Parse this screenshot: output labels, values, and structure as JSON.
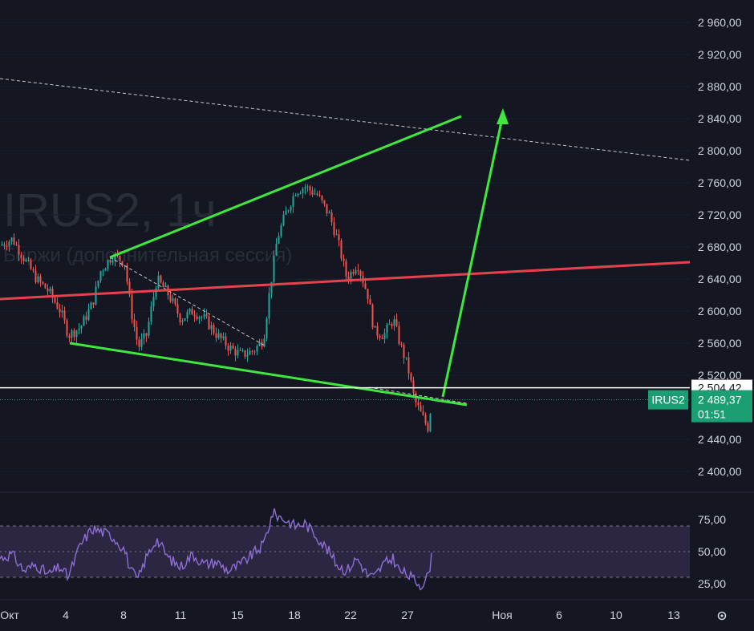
{
  "watermark": {
    "title": "IRUS2, 1ч",
    "subtitle": "Биржи (дополнительная сессия)"
  },
  "price_scale": {
    "ticks": [
      "2 960,00",
      "2 920,00",
      "2 880,00",
      "2 840,00",
      "2 800,00",
      "2 760,00",
      "2 720,00",
      "2 680,00",
      "2 640,00",
      "2 600,00",
      "2 560,00",
      "2 520,00",
      "2 440,00",
      "2 400,00"
    ],
    "marked_level_label": "2 504,42",
    "current_price_label": "2 489,37",
    "countdown": "01:51",
    "symbol_tag": "IRUS2"
  },
  "rsi_scale": {
    "ticks": [
      "75,00",
      "50,00",
      "25,00"
    ]
  },
  "time_axis": {
    "labels": [
      "Окт",
      "4",
      "8",
      "11",
      "15",
      "18",
      "22",
      "27",
      "Ноя",
      "6",
      "10",
      "13"
    ]
  },
  "settings_icon": "gear-icon",
  "colors": {
    "background": "#141722",
    "up_candle": "#26a69a",
    "down_candle": "#ef5350",
    "trendline": "#3ee83e",
    "resistance_line": "#e8414e",
    "rsi_line": "#8e6fd6",
    "rsi_band": "#2c2642",
    "current_price_tag": "#1b9e72"
  },
  "chart_data": [
    {
      "type": "candlestick",
      "symbol": "IRUS2",
      "timeframe": "1ч",
      "x": [
        "Окт",
        "4",
        "8",
        "11",
        "15",
        "18",
        "22",
        "27",
        "Ноя",
        "6",
        "10",
        "13"
      ],
      "ylim": [
        2385,
        2980
      ],
      "marked_level": 2504.42,
      "last_price": 2489.37,
      "close_path": [
        {
          "t": 0,
          "v": 2682
        },
        {
          "t": 15,
          "v": 2690
        },
        {
          "t": 30,
          "v": 2665
        },
        {
          "t": 45,
          "v": 2640
        },
        {
          "t": 60,
          "v": 2625
        },
        {
          "t": 75,
          "v": 2600
        },
        {
          "t": 85,
          "v": 2570
        },
        {
          "t": 100,
          "v": 2580
        },
        {
          "t": 115,
          "v": 2610
        },
        {
          "t": 125,
          "v": 2650
        },
        {
          "t": 140,
          "v": 2670
        },
        {
          "t": 155,
          "v": 2660
        },
        {
          "t": 163,
          "v": 2600
        },
        {
          "t": 172,
          "v": 2555
        },
        {
          "t": 182,
          "v": 2570
        },
        {
          "t": 195,
          "v": 2640
        },
        {
          "t": 210,
          "v": 2620
        },
        {
          "t": 225,
          "v": 2590
        },
        {
          "t": 240,
          "v": 2600
        },
        {
          "t": 255,
          "v": 2590
        },
        {
          "t": 270,
          "v": 2570
        },
        {
          "t": 285,
          "v": 2555
        },
        {
          "t": 300,
          "v": 2545
        },
        {
          "t": 315,
          "v": 2550
        },
        {
          "t": 328,
          "v": 2565
        },
        {
          "t": 335,
          "v": 2620
        },
        {
          "t": 345,
          "v": 2690
        },
        {
          "t": 355,
          "v": 2720
        },
        {
          "t": 368,
          "v": 2750
        },
        {
          "t": 380,
          "v": 2755
        },
        {
          "t": 395,
          "v": 2745
        },
        {
          "t": 410,
          "v": 2720
        },
        {
          "t": 420,
          "v": 2690
        },
        {
          "t": 432,
          "v": 2640
        },
        {
          "t": 445,
          "v": 2660
        },
        {
          "t": 458,
          "v": 2620
        },
        {
          "t": 466,
          "v": 2575
        },
        {
          "t": 478,
          "v": 2570
        },
        {
          "t": 490,
          "v": 2590
        },
        {
          "t": 498,
          "v": 2560
        },
        {
          "t": 508,
          "v": 2530
        },
        {
          "t": 516,
          "v": 2490
        },
        {
          "t": 525,
          "v": 2470
        },
        {
          "t": 533,
          "v": 2455
        },
        {
          "t": 538,
          "v": 2489
        }
      ],
      "drawings": {
        "upper_trendline": [
          [
            137,
            2667
          ],
          [
            575,
            2843
          ]
        ],
        "lower_trendline": [
          [
            87,
            2560
          ],
          [
            582,
            2483
          ]
        ],
        "resistance_line": [
          [
            0,
            2615
          ],
          [
            860,
            2661
          ]
        ],
        "projection_arrow": [
          [
            552,
            2493
          ],
          [
            627,
            2845
          ]
        ],
        "dashed_upper": [
          [
            0,
            2890
          ],
          [
            860,
            2788
          ]
        ],
        "dashed_inner": [
          [
            137,
            2667
          ],
          [
            330,
            2557
          ]
        ],
        "dashed_lower_extension": [
          [
            460,
            2505
          ],
          [
            582,
            2485
          ]
        ]
      }
    },
    {
      "type": "line",
      "name": "RSI",
      "ylim": [
        18,
        85
      ],
      "band": [
        30,
        70
      ],
      "midline": 50,
      "y_path": [
        {
          "t": 0,
          "v": 45
        },
        {
          "t": 15,
          "v": 48
        },
        {
          "t": 30,
          "v": 35
        },
        {
          "t": 45,
          "v": 40
        },
        {
          "t": 60,
          "v": 32
        },
        {
          "t": 75,
          "v": 38
        },
        {
          "t": 85,
          "v": 30
        },
        {
          "t": 100,
          "v": 55
        },
        {
          "t": 115,
          "v": 68
        },
        {
          "t": 125,
          "v": 66
        },
        {
          "t": 140,
          "v": 62
        },
        {
          "t": 155,
          "v": 52
        },
        {
          "t": 163,
          "v": 35
        },
        {
          "t": 172,
          "v": 28
        },
        {
          "t": 182,
          "v": 45
        },
        {
          "t": 195,
          "v": 60
        },
        {
          "t": 210,
          "v": 45
        },
        {
          "t": 225,
          "v": 38
        },
        {
          "t": 240,
          "v": 48
        },
        {
          "t": 255,
          "v": 40
        },
        {
          "t": 270,
          "v": 42
        },
        {
          "t": 285,
          "v": 35
        },
        {
          "t": 300,
          "v": 40
        },
        {
          "t": 315,
          "v": 48
        },
        {
          "t": 328,
          "v": 55
        },
        {
          "t": 340,
          "v": 80
        },
        {
          "t": 355,
          "v": 75
        },
        {
          "t": 368,
          "v": 70
        },
        {
          "t": 380,
          "v": 72
        },
        {
          "t": 395,
          "v": 62
        },
        {
          "t": 410,
          "v": 50
        },
        {
          "t": 420,
          "v": 40
        },
        {
          "t": 432,
          "v": 35
        },
        {
          "t": 445,
          "v": 45
        },
        {
          "t": 458,
          "v": 32
        },
        {
          "t": 466,
          "v": 30
        },
        {
          "t": 478,
          "v": 40
        },
        {
          "t": 490,
          "v": 45
        },
        {
          "t": 498,
          "v": 35
        },
        {
          "t": 508,
          "v": 32
        },
        {
          "t": 516,
          "v": 28
        },
        {
          "t": 525,
          "v": 24
        },
        {
          "t": 533,
          "v": 30
        },
        {
          "t": 538,
          "v": 45
        }
      ]
    }
  ]
}
